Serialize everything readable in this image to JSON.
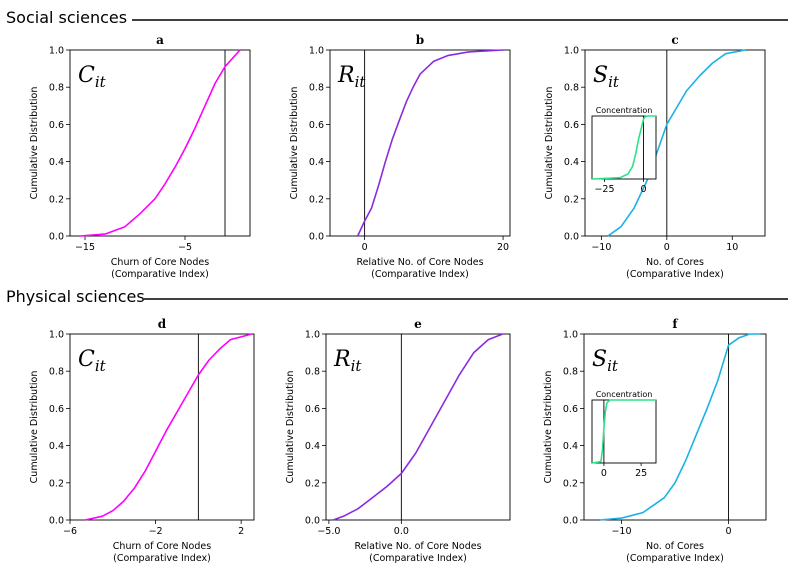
{
  "sections": [
    {
      "title": "Social sciences"
    },
    {
      "title": "Physical sciences"
    }
  ],
  "chart_data": [
    {
      "panel": "a",
      "type": "line",
      "symbol_base": "C",
      "symbol_sub": "it",
      "xlabel": [
        "Churn of Core Nodes",
        "(Comparative Index)"
      ],
      "ylabel": "Cumulative Distribution",
      "xlim": [
        -16.5,
        1.5
      ],
      "ylim": [
        0,
        1
      ],
      "xticks": [
        -15,
        -5
      ],
      "xtick_labels": [
        "−15",
        "−5"
      ],
      "yticks": [
        0,
        0.2,
        0.4,
        0.6,
        0.8,
        1.0
      ],
      "ytick_labels": [
        "0.0",
        "0.2",
        "0.4",
        "0.6",
        "0.8",
        "1.0"
      ],
      "vline": -1,
      "series": [
        {
          "color": "#ff00ff",
          "x": [
            -15.5,
            -13,
            -11,
            -9.5,
            -8,
            -7,
            -6,
            -5,
            -4,
            -3,
            -2,
            -1,
            0.5
          ],
          "y": [
            0,
            0.01,
            0.05,
            0.12,
            0.2,
            0.28,
            0.37,
            0.47,
            0.58,
            0.7,
            0.82,
            0.91,
            1.0
          ]
        }
      ]
    },
    {
      "panel": "b",
      "type": "line",
      "symbol_base": "R",
      "symbol_sub": "it",
      "xlabel": [
        "Relative No. of Core Nodes",
        "(Comparative Index)"
      ],
      "ylabel": "Cumulative Distribution",
      "xlim": [
        -5,
        21
      ],
      "ylim": [
        0,
        1
      ],
      "xticks": [
        0,
        20
      ],
      "xtick_labels": [
        "0",
        "20"
      ],
      "yticks": [
        0,
        0.2,
        0.4,
        0.6,
        0.8,
        1.0
      ],
      "ytick_labels": [
        "0.0",
        "0.2",
        "0.4",
        "0.6",
        "0.8",
        "1.0"
      ],
      "vline": 0,
      "series": [
        {
          "color": "#8a2be2",
          "x": [
            -1,
            0,
            1,
            2,
            3,
            4,
            5,
            6,
            7,
            8,
            10,
            12,
            15,
            20
          ],
          "y": [
            0,
            0.08,
            0.15,
            0.27,
            0.4,
            0.52,
            0.62,
            0.72,
            0.8,
            0.87,
            0.94,
            0.97,
            0.99,
            1.0
          ]
        }
      ]
    },
    {
      "panel": "c",
      "type": "line",
      "symbol_base": "S",
      "symbol_sub": "it",
      "xlabel": [
        "No. of Cores",
        "(Comparative Index)"
      ],
      "ylabel": "Cumulative Distribution",
      "xlim": [
        -12.5,
        15
      ],
      "ylim": [
        0,
        1
      ],
      "xticks": [
        -10,
        0,
        10
      ],
      "xtick_labels": [
        "−10",
        "0",
        "10"
      ],
      "yticks": [
        0,
        0.2,
        0.4,
        0.6,
        0.8,
        1.0
      ],
      "ytick_labels": [
        "0.0",
        "0.2",
        "0.4",
        "0.6",
        "0.8",
        "1.0"
      ],
      "vline": 0,
      "series": [
        {
          "color": "#1ab2e6",
          "x": [
            -9,
            -7,
            -5,
            -3,
            -2,
            -1,
            0,
            1,
            2,
            3,
            5,
            7,
            9,
            12
          ],
          "y": [
            0,
            0.05,
            0.15,
            0.3,
            0.4,
            0.5,
            0.6,
            0.66,
            0.72,
            0.78,
            0.86,
            0.93,
            0.98,
            1.0
          ]
        }
      ],
      "inset": {
        "title": "Concentration",
        "xlim": [
          -33,
          8
        ],
        "ylim": [
          0,
          1
        ],
        "xticks": [
          -25,
          0
        ],
        "xtick_labels": [
          "−25",
          "0"
        ],
        "vline": 0,
        "series": [
          {
            "color": "#2fe08a",
            "x": [
              -33,
              -15,
              -10,
              -7,
              -5,
              -3,
              -1,
              0,
              1,
              3,
              8
            ],
            "y": [
              0,
              0.02,
              0.08,
              0.2,
              0.4,
              0.65,
              0.85,
              0.95,
              0.99,
              1.0,
              1.0
            ]
          }
        ]
      }
    },
    {
      "panel": "d",
      "type": "line",
      "symbol_base": "C",
      "symbol_sub": "it",
      "xlabel": [
        "Churn of Core Nodes",
        "(Comparative Index)"
      ],
      "ylabel": "Cumulative Distribution",
      "xlim": [
        -6,
        2.6
      ],
      "ylim": [
        0,
        1
      ],
      "xticks": [
        -6,
        -2,
        2
      ],
      "xtick_labels": [
        "−6",
        "−2",
        "2"
      ],
      "yticks": [
        0,
        0.2,
        0.4,
        0.6,
        0.8,
        1.0
      ],
      "ytick_labels": [
        "0.0",
        "0.2",
        "0.4",
        "0.6",
        "0.8",
        "1.0"
      ],
      "vline": 0,
      "series": [
        {
          "color": "#ff00ff",
          "x": [
            -5.3,
            -4.5,
            -4,
            -3.5,
            -3,
            -2.5,
            -2,
            -1.5,
            -1,
            -0.5,
            0,
            0.5,
            1,
            1.5,
            2.5
          ],
          "y": [
            0,
            0.02,
            0.05,
            0.1,
            0.17,
            0.26,
            0.37,
            0.48,
            0.58,
            0.68,
            0.78,
            0.86,
            0.92,
            0.97,
            1.0
          ]
        }
      ]
    },
    {
      "panel": "e",
      "type": "line",
      "symbol_base": "R",
      "symbol_sub": "it",
      "xlabel": [
        "Relative No. of Core Nodes",
        "(Comparative Index)"
      ],
      "ylabel": "Cumulative Distribution",
      "xlim": [
        -5.2,
        7.5
      ],
      "ylim": [
        0,
        1
      ],
      "xticks": [
        -5,
        0
      ],
      "xtick_labels": [
        "−5.0",
        "0.0"
      ],
      "yticks": [
        0,
        0.2,
        0.4,
        0.6,
        0.8,
        1.0
      ],
      "ytick_labels": [
        "0.0",
        "0.2",
        "0.4",
        "0.6",
        "0.8",
        "1.0"
      ],
      "vline": 0,
      "series": [
        {
          "color": "#8a2be2",
          "x": [
            -4.7,
            -4,
            -3,
            -2,
            -1,
            0,
            1,
            2,
            3,
            4,
            5,
            6,
            7
          ],
          "y": [
            0,
            0.02,
            0.06,
            0.12,
            0.18,
            0.25,
            0.36,
            0.5,
            0.64,
            0.78,
            0.9,
            0.97,
            1.0
          ]
        }
      ]
    },
    {
      "panel": "f",
      "type": "line",
      "symbol_base": "S",
      "symbol_sub": "it",
      "xlabel": [
        "No. of Cores",
        "(Comparative Index)"
      ],
      "ylabel": "Cumulative Distribution",
      "xlim": [
        -13.5,
        3.5
      ],
      "ylim": [
        0,
        1
      ],
      "xticks": [
        -10,
        0
      ],
      "xtick_labels": [
        "−10",
        "0"
      ],
      "yticks": [
        0,
        0.2,
        0.4,
        0.6,
        0.8,
        1.0
      ],
      "ytick_labels": [
        "0.0",
        "0.2",
        "0.4",
        "0.6",
        "0.8",
        "1.0"
      ],
      "vline": 0,
      "series": [
        {
          "color": "#1ab2e6",
          "x": [
            -12,
            -10,
            -8,
            -6,
            -5,
            -4,
            -3,
            -2,
            -1,
            0,
            1,
            2,
            3
          ],
          "y": [
            0,
            0.01,
            0.04,
            0.12,
            0.2,
            0.32,
            0.46,
            0.6,
            0.75,
            0.94,
            0.98,
            1.0,
            1.0
          ]
        }
      ],
      "inset": {
        "title": "Concentration",
        "xlim": [
          -8,
          35
        ],
        "ylim": [
          0,
          1
        ],
        "xticks": [
          0,
          25
        ],
        "xtick_labels": [
          "0",
          "25"
        ],
        "vline": 0,
        "series": [
          {
            "color": "#2fe08a",
            "x": [
              -8,
              -2,
              -1,
              0,
              1,
              2,
              4,
              35
            ],
            "y": [
              0,
              0.02,
              0.2,
              0.55,
              0.82,
              0.95,
              1.0,
              1.0
            ]
          }
        ]
      }
    }
  ]
}
